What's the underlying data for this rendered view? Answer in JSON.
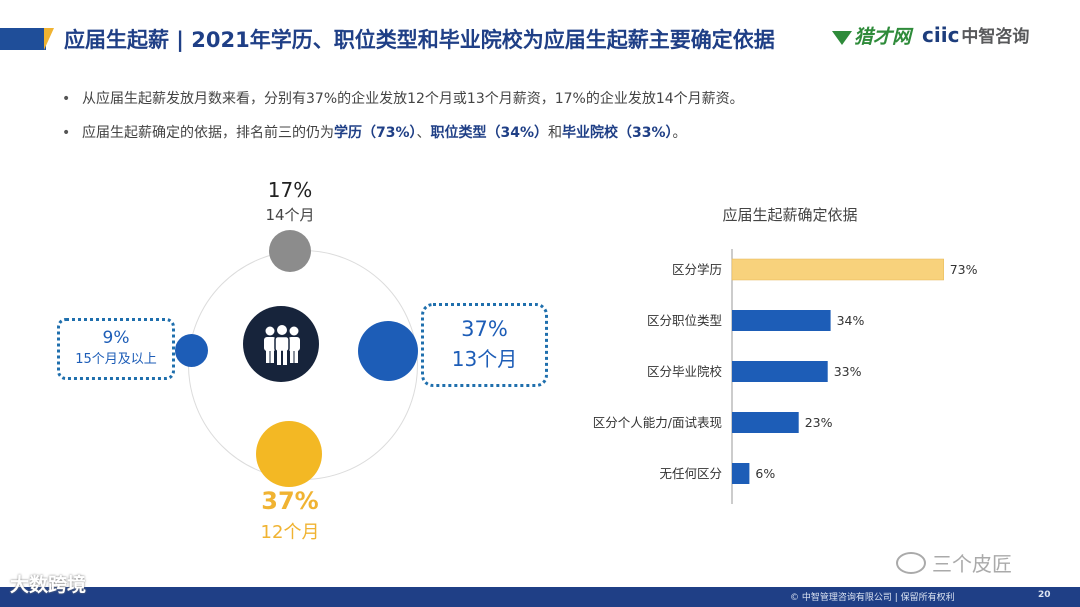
{
  "header": {
    "title": "应届生起薪 | 2021年学历、职位类型和毕业院校为应届生起薪主要确定依据",
    "logo_left": "猎才网",
    "logo_right_latin": "ciic",
    "logo_right_cn": "中智咨询"
  },
  "bullets": [
    {
      "text": "从应届生起薪发放月数来看，分别有37%的企业发放12个月或13个月薪资，17%的企业发放14个月薪资。"
    },
    {
      "prefix": "应届生起薪确定的依据，排名前三的仍为",
      "b1": "学历（73%）",
      "sep1": "、",
      "b2": "职位类型（34%）",
      "sep2": "和",
      "b3": "毕业院校（33%）",
      "suffix": "。"
    }
  ],
  "months": {
    "top": {
      "pct": "17%",
      "label": "14个月"
    },
    "left": {
      "pct": "9%",
      "label": "15个月及以上"
    },
    "right": {
      "pct": "37%",
      "label": "13个月"
    },
    "bottom": {
      "pct": "37%",
      "label": "12个月"
    }
  },
  "colors": {
    "navy": "#1f3f86",
    "blue": "#1d5db7",
    "gold": "#f3b824",
    "gray": "#8c8c8c",
    "dark": "#17243b"
  },
  "chart_data": {
    "type": "bar",
    "orientation": "horizontal",
    "title": "应届生起薪确定依据",
    "categories": [
      "区分学历",
      "区分职位类型",
      "区分毕业院校",
      "区分个人能力/面试表现",
      "无任何区分"
    ],
    "values": [
      73,
      34,
      33,
      23,
      6
    ],
    "value_labels": [
      "73%",
      "34%",
      "33%",
      "23%",
      "6%"
    ],
    "bar_colors": [
      "#f8d27c",
      "#1d5db7",
      "#1d5db7",
      "#1d5db7",
      "#1d5db7"
    ],
    "xlim": [
      0,
      100
    ],
    "grid": false,
    "legend": "none"
  },
  "watermark": "三个皮匠",
  "footer": {
    "left": "大数跨境",
    "copyright": "© 中智管理咨询有限公司 | 保留所有权利",
    "page": "20"
  }
}
